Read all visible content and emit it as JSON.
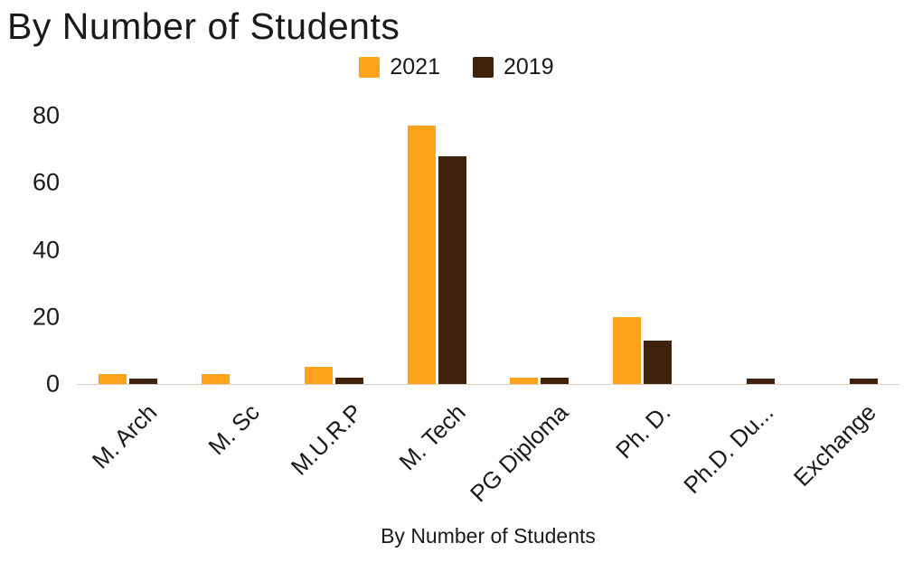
{
  "chart_data": {
    "type": "bar",
    "title": "By Number of Students",
    "xlabel": "By Number of Students",
    "ylabel": "",
    "categories": [
      "M. Arch",
      "M. Sc",
      "M.U.R.P",
      "M. Tech",
      "PG Diploma",
      "Ph. D.",
      "Ph.D. Du...",
      "Exchange"
    ],
    "series": [
      {
        "name": "2021",
        "color": "#FFA21C",
        "values": [
          3,
          3,
          5,
          77,
          2,
          20,
          0,
          0
        ]
      },
      {
        "name": "2019",
        "color": "#40220C",
        "values": [
          1.5,
          0,
          2,
          68,
          2,
          13,
          1.5,
          1.5
        ]
      }
    ],
    "ylim": [
      0,
      80
    ],
    "yticks": [
      0,
      20,
      40,
      60,
      80
    ],
    "grid": false,
    "legend_position": "top"
  },
  "colors": {
    "background": "#ffffff",
    "axis_line": "#d9cfc4",
    "text": "#1a1a1a"
  }
}
